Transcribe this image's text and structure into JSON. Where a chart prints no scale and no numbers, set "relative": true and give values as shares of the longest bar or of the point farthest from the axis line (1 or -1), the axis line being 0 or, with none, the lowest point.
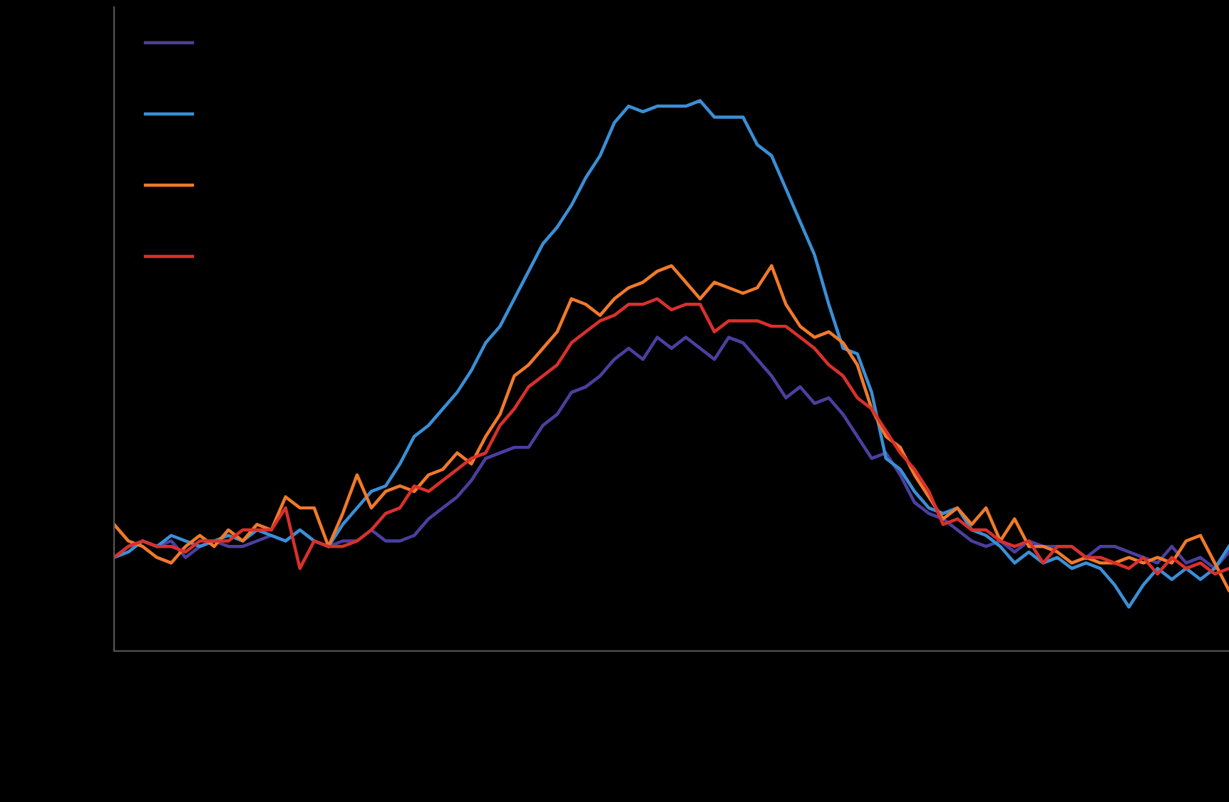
{
  "chart_data": {
    "type": "line",
    "relative": true,
    "marker": "none",
    "line_style": "solid",
    "categories": [
      null,
      null,
      null,
      null,
      null,
      null,
      null,
      null,
      null,
      null,
      null,
      null,
      null,
      null,
      null,
      null,
      null,
      null,
      null,
      null,
      null,
      null,
      null,
      null,
      null,
      null,
      null,
      null,
      null,
      null,
      null,
      null,
      null,
      null,
      null,
      null,
      null,
      null,
      null,
      null,
      null,
      null,
      null,
      null,
      null,
      null,
      null,
      null,
      null,
      null,
      null,
      null,
      null,
      null,
      null,
      null,
      null,
      null,
      null,
      null,
      null,
      null,
      null,
      null,
      null,
      null,
      null,
      null,
      null,
      null,
      null,
      null,
      null,
      null,
      null,
      null,
      null,
      null,
      null
    ],
    "series": [
      {
        "color": "#4b3fa0",
        "values": [
          0.17,
          0.19,
          0.2,
          0.19,
          0.2,
          0.17,
          0.19,
          0.2,
          0.19,
          0.19,
          0.2,
          0.21,
          0.2,
          0.22,
          0.2,
          0.19,
          0.2,
          0.2,
          0.22,
          0.2,
          0.2,
          0.21,
          0.24,
          0.26,
          0.28,
          0.31,
          0.35,
          0.36,
          0.37,
          0.37,
          0.41,
          0.43,
          0.47,
          0.48,
          0.5,
          0.53,
          0.55,
          0.53,
          0.57,
          0.55,
          0.57,
          0.55,
          0.53,
          0.57,
          0.56,
          0.53,
          0.5,
          0.46,
          0.48,
          0.45,
          0.46,
          0.43,
          0.39,
          0.35,
          0.36,
          0.32,
          0.27,
          0.25,
          0.24,
          0.22,
          0.2,
          0.19,
          0.2,
          0.18,
          0.2,
          0.19,
          0.19,
          0.19,
          0.17,
          0.19,
          0.19,
          0.18,
          0.17,
          0.16,
          0.19,
          0.16,
          0.17,
          0.15,
          0.18
        ]
      },
      {
        "color": "#3a8fd6",
        "values": [
          0.17,
          0.18,
          0.2,
          0.19,
          0.21,
          0.2,
          0.19,
          0.2,
          0.21,
          0.2,
          0.22,
          0.21,
          0.2,
          0.22,
          0.2,
          0.19,
          0.23,
          0.26,
          0.29,
          0.3,
          0.34,
          0.39,
          0.41,
          0.44,
          0.47,
          0.51,
          0.56,
          0.59,
          0.64,
          0.69,
          0.74,
          0.77,
          0.81,
          0.86,
          0.9,
          0.96,
          0.99,
          0.98,
          0.99,
          0.99,
          0.99,
          1.0,
          0.97,
          0.97,
          0.97,
          0.92,
          0.9,
          0.84,
          0.78,
          0.72,
          0.63,
          0.55,
          0.54,
          0.47,
          0.35,
          0.33,
          0.29,
          0.26,
          0.25,
          0.26,
          0.22,
          0.21,
          0.19,
          0.16,
          0.18,
          0.16,
          0.17,
          0.15,
          0.16,
          0.15,
          0.12,
          0.08,
          0.12,
          0.15,
          0.13,
          0.15,
          0.13,
          0.15,
          0.19
        ]
      },
      {
        "color": "#f07a2a",
        "values": [
          0.23,
          0.2,
          0.19,
          0.17,
          0.16,
          0.19,
          0.21,
          0.19,
          0.22,
          0.2,
          0.23,
          0.22,
          0.28,
          0.26,
          0.26,
          0.19,
          0.25,
          0.32,
          0.26,
          0.29,
          0.3,
          0.29,
          0.32,
          0.33,
          0.36,
          0.34,
          0.39,
          0.43,
          0.5,
          0.52,
          0.55,
          0.58,
          0.64,
          0.63,
          0.61,
          0.64,
          0.66,
          0.67,
          0.69,
          0.7,
          0.67,
          0.64,
          0.67,
          0.66,
          0.65,
          0.66,
          0.7,
          0.63,
          0.59,
          0.57,
          0.58,
          0.56,
          0.52,
          0.44,
          0.39,
          0.37,
          0.32,
          0.28,
          0.24,
          0.26,
          0.23,
          0.26,
          0.2,
          0.24,
          0.19,
          0.19,
          0.18,
          0.16,
          0.17,
          0.16,
          0.16,
          0.17,
          0.16,
          0.17,
          0.16,
          0.2,
          0.21,
          0.16,
          0.11
        ]
      },
      {
        "color": "#d9302c",
        "values": [
          0.17,
          0.19,
          0.2,
          0.19,
          0.19,
          0.18,
          0.2,
          0.2,
          0.2,
          0.22,
          0.22,
          0.22,
          0.26,
          0.15,
          0.2,
          0.19,
          0.19,
          0.2,
          0.22,
          0.25,
          0.26,
          0.3,
          0.29,
          0.31,
          0.33,
          0.35,
          0.36,
          0.41,
          0.44,
          0.48,
          0.5,
          0.52,
          0.56,
          0.58,
          0.6,
          0.61,
          0.63,
          0.63,
          0.64,
          0.62,
          0.63,
          0.63,
          0.58,
          0.6,
          0.6,
          0.6,
          0.59,
          0.59,
          0.57,
          0.55,
          0.52,
          0.5,
          0.46,
          0.44,
          0.4,
          0.36,
          0.33,
          0.29,
          0.23,
          0.24,
          0.22,
          0.22,
          0.2,
          0.19,
          0.2,
          0.16,
          0.19,
          0.19,
          0.17,
          0.17,
          0.16,
          0.15,
          0.17,
          0.14,
          0.17,
          0.15,
          0.16,
          0.14,
          0.15
        ]
      }
    ]
  }
}
